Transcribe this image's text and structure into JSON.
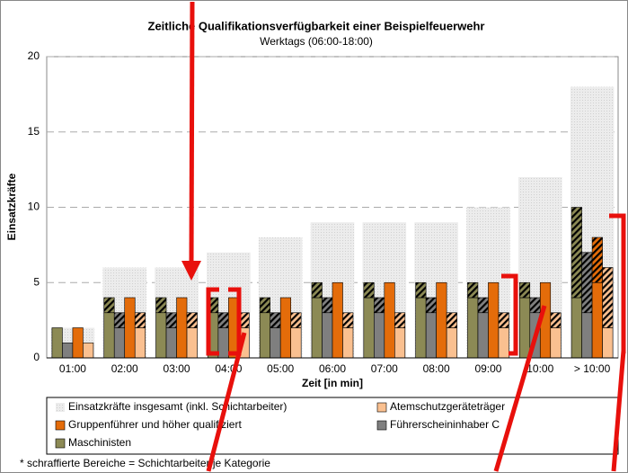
{
  "chart_data": {
    "type": "bar",
    "title": "Zeitliche Qualifikationsverfügbarkeit einer Beispielfeuerwehr",
    "subtitle": "Werktags (06:00-18:00)",
    "ylabel": "Einsatzkräfte",
    "xlabel": "Zeit [in min]",
    "footnote": "* schraffierte Bereiche = Schichtarbeiter je Kategorie",
    "categories": [
      "01:00",
      "02:00",
      "03:00",
      "04:00",
      "05:00",
      "06:00",
      "07:00",
      "08:00",
      "09:00",
      "10:00",
      "> 10:00"
    ],
    "ylim": [
      0,
      20
    ],
    "yticks": [
      0,
      5,
      10,
      15,
      20
    ],
    "grid": true,
    "total": {
      "name": "Einsatzkräfte insgesamt (inkl. Schichtarbeiter)",
      "color": "#e6e6e6",
      "values": [
        2,
        6,
        6,
        7,
        8,
        9,
        9,
        9,
        10,
        12,
        18
      ]
    },
    "series": [
      {
        "name": "Maschinisten",
        "color": "#8c8a55",
        "values": [
          2,
          3,
          3,
          3,
          3,
          4,
          4,
          4,
          4,
          4,
          4
        ],
        "hatched_values": [
          0,
          1,
          1,
          1,
          1,
          1,
          1,
          1,
          1,
          1,
          6
        ]
      },
      {
        "name": "Führerscheininhaber C",
        "color": "#7f7f7f",
        "values": [
          1,
          2,
          2,
          2,
          2,
          3,
          3,
          3,
          3,
          3,
          3
        ],
        "hatched_values": [
          0,
          1,
          1,
          1,
          1,
          1,
          1,
          1,
          1,
          1,
          4
        ]
      },
      {
        "name": "Gruppenführer und höher qualifiziert",
        "color": "#e46c0a",
        "values": [
          2,
          4,
          4,
          4,
          4,
          5,
          5,
          5,
          5,
          5,
          5
        ],
        "hatched_values": [
          0,
          0,
          0,
          0,
          0,
          0,
          0,
          0,
          0,
          0,
          3
        ]
      },
      {
        "name": "Atemschutzgeräteträger",
        "color": "#fac090",
        "values": [
          1,
          2,
          2,
          2,
          2,
          2,
          2,
          2,
          2,
          2,
          2
        ],
        "hatched_values": [
          0,
          1,
          1,
          1,
          1,
          1,
          1,
          1,
          1,
          1,
          4
        ]
      }
    ]
  }
}
